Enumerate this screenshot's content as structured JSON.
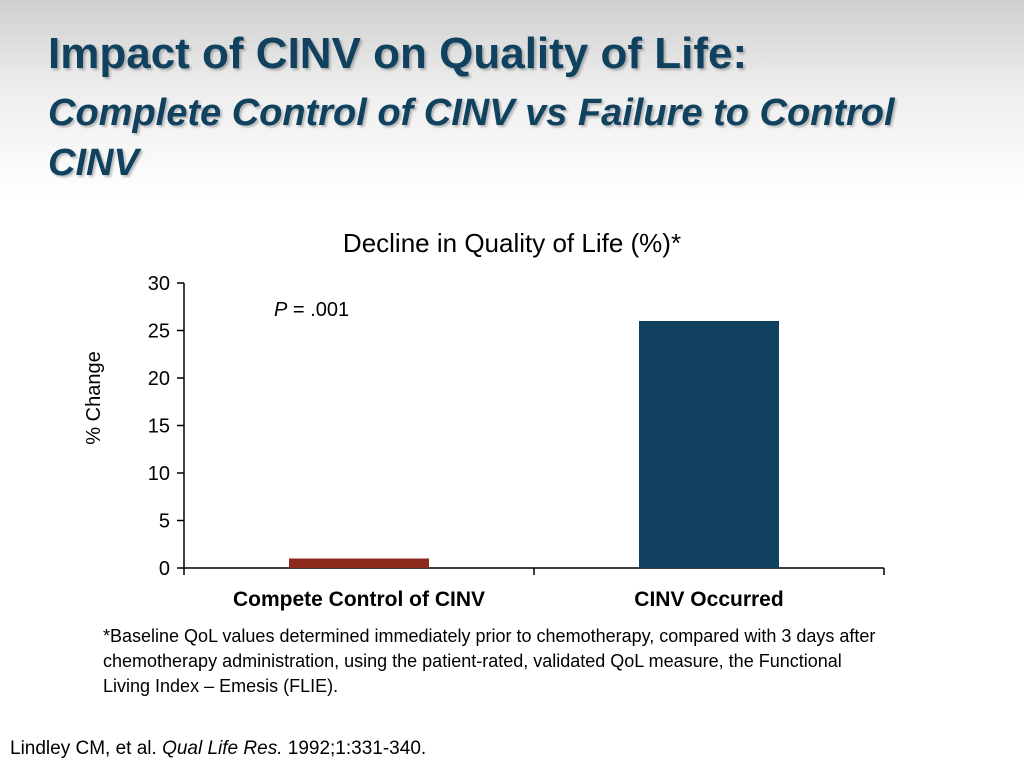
{
  "slide": {
    "title": "Impact of CINV on Quality of Life:",
    "subtitle": "Complete Control of CINV vs Failure to Control CINV"
  },
  "chart_data": {
    "type": "bar",
    "title": "Decline in Quality of Life (%)*",
    "xlabel": "",
    "ylabel": "% Change",
    "categories": [
      "Compete Control of CINV",
      "CINV Occurred"
    ],
    "values": [
      1,
      26
    ],
    "colors": [
      "#8b2a1d",
      "#10415f"
    ],
    "ylim": [
      0,
      30
    ],
    "yticks": [
      "0",
      "5",
      "10",
      "15",
      "20",
      "25",
      "30"
    ],
    "annotation": {
      "italic": "P",
      "text": " = .001"
    },
    "grid": false,
    "legend": "none"
  },
  "footnote": "*Baseline QoL values determined immediately prior to chemotherapy, compared with 3 days after chemotherapy administration, using the patient-rated, validated QoL measure, the Functional Living Index – Emesis (FLIE).",
  "citation": {
    "authors": "Lindley CM, et al. ",
    "journal": "Qual Life Res.",
    "details": " 1992;1:331-340."
  }
}
